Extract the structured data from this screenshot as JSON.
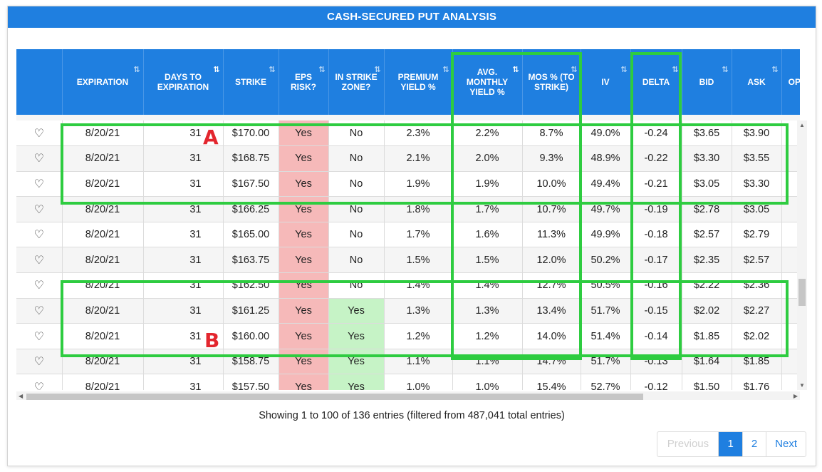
{
  "title": "CASH-SECURED PUT ANALYSIS",
  "columns": [
    {
      "label": "",
      "sort": ""
    },
    {
      "label": "EXPIRATION",
      "sort": "⇅"
    },
    {
      "label": "DAYS TO EXPIRATION",
      "sort": "⇅"
    },
    {
      "label": "STRIKE",
      "sort": "⇅"
    },
    {
      "label": "EPS RISK?",
      "sort": "⇅"
    },
    {
      "label": "IN STRIKE ZONE?",
      "sort": "⇅"
    },
    {
      "label": "PREMIUM YIELD %",
      "sort": "⇅"
    },
    {
      "label": "AVG. MONTHLY YIELD %",
      "sort": "⇅"
    },
    {
      "label": "MOS % (TO STRIKE)",
      "sort": "⇅"
    },
    {
      "label": "IV",
      "sort": "⇅"
    },
    {
      "label": "DELTA",
      "sort": "⇅"
    },
    {
      "label": "BID",
      "sort": "⇅"
    },
    {
      "label": "ASK",
      "sort": "⇅"
    },
    {
      "label": "OPT PR (PREM",
      "sort": ""
    }
  ],
  "rows": [
    {
      "exp": "8/20/21",
      "dte": "31",
      "strike": "$170.00",
      "eps": "Yes",
      "zone": "No",
      "prem": "2.3%",
      "avg": "2.2%",
      "mos": "8.7%",
      "iv": "49.0%",
      "delta": "-0.24",
      "bid": "$3.65",
      "ask": "$3.90"
    },
    {
      "exp": "8/20/21",
      "dte": "31",
      "strike": "$168.75",
      "eps": "Yes",
      "zone": "No",
      "prem": "2.1%",
      "avg": "2.0%",
      "mos": "9.3%",
      "iv": "48.9%",
      "delta": "-0.22",
      "bid": "$3.30",
      "ask": "$3.55"
    },
    {
      "exp": "8/20/21",
      "dte": "31",
      "strike": "$167.50",
      "eps": "Yes",
      "zone": "No",
      "prem": "1.9%",
      "avg": "1.9%",
      "mos": "10.0%",
      "iv": "49.4%",
      "delta": "-0.21",
      "bid": "$3.05",
      "ask": "$3.30"
    },
    {
      "exp": "8/20/21",
      "dte": "31",
      "strike": "$166.25",
      "eps": "Yes",
      "zone": "No",
      "prem": "1.8%",
      "avg": "1.7%",
      "mos": "10.7%",
      "iv": "49.7%",
      "delta": "-0.19",
      "bid": "$2.78",
      "ask": "$3.05"
    },
    {
      "exp": "8/20/21",
      "dte": "31",
      "strike": "$165.00",
      "eps": "Yes",
      "zone": "No",
      "prem": "1.7%",
      "avg": "1.6%",
      "mos": "11.3%",
      "iv": "49.9%",
      "delta": "-0.18",
      "bid": "$2.57",
      "ask": "$2.79"
    },
    {
      "exp": "8/20/21",
      "dte": "31",
      "strike": "$163.75",
      "eps": "Yes",
      "zone": "No",
      "prem": "1.5%",
      "avg": "1.5%",
      "mos": "12.0%",
      "iv": "50.2%",
      "delta": "-0.17",
      "bid": "$2.35",
      "ask": "$2.57"
    },
    {
      "exp": "8/20/21",
      "dte": "31",
      "strike": "$162.50",
      "eps": "Yes",
      "zone": "No",
      "prem": "1.4%",
      "avg": "1.4%",
      "mos": "12.7%",
      "iv": "50.5%",
      "delta": "-0.16",
      "bid": "$2.22",
      "ask": "$2.36"
    },
    {
      "exp": "8/20/21",
      "dte": "31",
      "strike": "$161.25",
      "eps": "Yes",
      "zone": "Yes",
      "prem": "1.3%",
      "avg": "1.3%",
      "mos": "13.4%",
      "iv": "51.7%",
      "delta": "-0.15",
      "bid": "$2.02",
      "ask": "$2.27"
    },
    {
      "exp": "8/20/21",
      "dte": "31",
      "strike": "$160.00",
      "eps": "Yes",
      "zone": "Yes",
      "prem": "1.2%",
      "avg": "1.2%",
      "mos": "14.0%",
      "iv": "51.4%",
      "delta": "-0.14",
      "bid": "$1.85",
      "ask": "$2.02"
    },
    {
      "exp": "8/20/21",
      "dte": "31",
      "strike": "$158.75",
      "eps": "Yes",
      "zone": "Yes",
      "prem": "1.1%",
      "avg": "1.1%",
      "mos": "14.7%",
      "iv": "51.7%",
      "delta": "-0.13",
      "bid": "$1.64",
      "ask": "$1.85"
    },
    {
      "exp": "8/20/21",
      "dte": "31",
      "strike": "$157.50",
      "eps": "Yes",
      "zone": "Yes",
      "prem": "1.0%",
      "avg": "1.0%",
      "mos": "15.4%",
      "iv": "52.7%",
      "delta": "-0.12",
      "bid": "$1.50",
      "ask": "$1.76"
    }
  ],
  "markers": {
    "a": "A",
    "b": "B"
  },
  "info": "Showing 1 to 100 of 136 entries (filtered from 487,041 total entries)",
  "pagination": {
    "previous": "Previous",
    "page1": "1",
    "page2": "2",
    "next": "Next"
  },
  "highlight_color": "#2ecc40",
  "accent_color": "#1f7fe0",
  "eps_yes_color": "#f6b9b9",
  "zone_yes_color": "#c6f3c6"
}
